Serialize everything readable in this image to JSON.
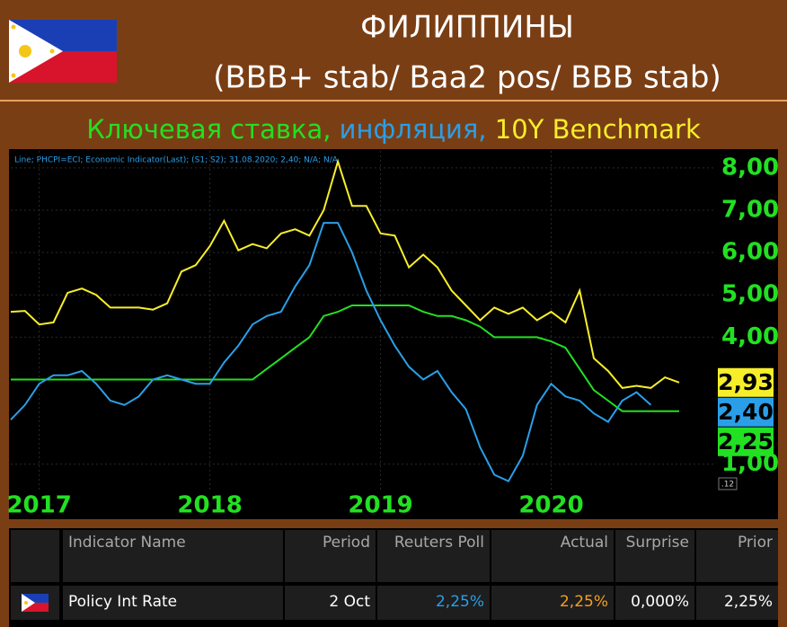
{
  "header": {
    "title": "ФИЛИППИНЫ",
    "subtitle": "(BBB+ stab/ Baa2 pos/ BBB stab)"
  },
  "chart_data": {
    "type": "line",
    "note": "Line; PHCPI=ECI; Economic Indicator(Last); (S1; S2); 31.08.2020; 2,40; N/A; N/A",
    "info": ".12",
    "categories": [
      null,
      null,
      "2017",
      null,
      null,
      null,
      null,
      null,
      null,
      null,
      null,
      null,
      null,
      null,
      "2018",
      null,
      null,
      null,
      null,
      null,
      null,
      null,
      null,
      null,
      null,
      null,
      "2019",
      null,
      null,
      null,
      null,
      null,
      null,
      null,
      null,
      null,
      null,
      null,
      "2020",
      null,
      null,
      null,
      null,
      null,
      null,
      null,
      null,
      null
    ],
    "ylim": [
      0.4,
      8.4
    ],
    "yticks": [
      {
        "value": 1,
        "label": "1,00"
      },
      {
        "value": 4,
        "label": "4,00"
      },
      {
        "value": 5,
        "label": "5,00"
      },
      {
        "value": 6,
        "label": "6,00"
      },
      {
        "value": 7,
        "label": "7,00"
      },
      {
        "value": 8,
        "label": "8,00"
      }
    ],
    "grid": true,
    "series": [
      {
        "name": "Ключевая ставка,",
        "color": "#22e022",
        "values": [
          3,
          3,
          3,
          3,
          3,
          3,
          3,
          3,
          3,
          3,
          3,
          3,
          3,
          3,
          3,
          3,
          3,
          3,
          3.25,
          3.5,
          3.75,
          4,
          4.5,
          4.6,
          4.75,
          4.75,
          4.75,
          4.75,
          4.75,
          4.6,
          4.5,
          4.5,
          4.4,
          4.25,
          4,
          4,
          4,
          4,
          3.9,
          3.75,
          3.25,
          2.75,
          2.5,
          2.25,
          2.25,
          2.25,
          2.25,
          2.25
        ],
        "value_labels": [
          null,
          null,
          null,
          null,
          null,
          null,
          null,
          null,
          null,
          null,
          null,
          null,
          null,
          null,
          null,
          null,
          null,
          null,
          null,
          null,
          null,
          null,
          null,
          null,
          null,
          null,
          null,
          null,
          null,
          null,
          null,
          null,
          null,
          null,
          null,
          null,
          null,
          null,
          null,
          null,
          null,
          null,
          null,
          null,
          null,
          null,
          null,
          "2,25"
        ]
      },
      {
        "name": " инфляция,",
        "color": "#2a9fe8",
        "values": [
          2.05,
          2.4,
          2.9,
          3.1,
          3.1,
          3.2,
          2.9,
          2.5,
          2.4,
          2.6,
          3.0,
          3.1,
          3.0,
          2.9,
          2.9,
          3.4,
          3.8,
          4.3,
          4.5,
          4.6,
          5.2,
          5.7,
          6.7,
          6.7,
          6.0,
          5.1,
          4.4,
          3.8,
          3.3,
          3.0,
          3.2,
          2.7,
          2.3,
          1.4,
          0.75,
          0.6,
          1.2,
          2.4,
          2.9,
          2.6,
          2.5,
          2.2,
          2.0,
          2.5,
          2.7,
          2.4,
          null,
          null
        ],
        "value_labels": [
          null,
          null,
          null,
          null,
          null,
          null,
          null,
          null,
          null,
          null,
          null,
          null,
          null,
          null,
          null,
          null,
          null,
          null,
          null,
          null,
          null,
          null,
          null,
          null,
          null,
          null,
          null,
          null,
          null,
          null,
          null,
          null,
          null,
          null,
          null,
          null,
          null,
          null,
          null,
          null,
          null,
          null,
          null,
          null,
          null,
          "2,40",
          null,
          null
        ]
      },
      {
        "name": " 10Y Benchmark",
        "color": "#f7ee2a",
        "values": [
          4.6,
          4.62,
          4.3,
          4.35,
          5.05,
          5.15,
          5.0,
          4.7,
          4.7,
          4.7,
          4.65,
          4.8,
          5.55,
          5.7,
          6.15,
          6.75,
          6.05,
          6.2,
          6.1,
          6.45,
          6.55,
          6.4,
          7.0,
          8.15,
          7.1,
          7.1,
          6.45,
          6.4,
          5.65,
          5.95,
          5.65,
          5.1,
          4.75,
          4.4,
          4.7,
          4.55,
          4.7,
          4.4,
          4.6,
          4.35,
          5.1,
          3.5,
          3.2,
          2.8,
          2.85,
          2.8,
          3.05,
          2.93
        ],
        "value_labels": [
          null,
          null,
          null,
          null,
          null,
          null,
          null,
          null,
          null,
          null,
          null,
          null,
          null,
          null,
          null,
          null,
          null,
          null,
          null,
          null,
          null,
          null,
          null,
          null,
          null,
          null,
          null,
          null,
          null,
          null,
          null,
          null,
          null,
          null,
          null,
          null,
          null,
          null,
          null,
          null,
          null,
          null,
          null,
          null,
          null,
          null,
          null,
          "2,93"
        ]
      }
    ]
  },
  "table": {
    "columns": [
      "Indicator Name",
      "Period",
      "Reuters Poll",
      "Actual",
      "Surprise",
      "Prior"
    ],
    "rows": [
      [
        "Policy Int Rate",
        "2 Oct",
        "2,25%",
        "2,25%",
        "0,000%",
        "2,25%"
      ]
    ]
  }
}
